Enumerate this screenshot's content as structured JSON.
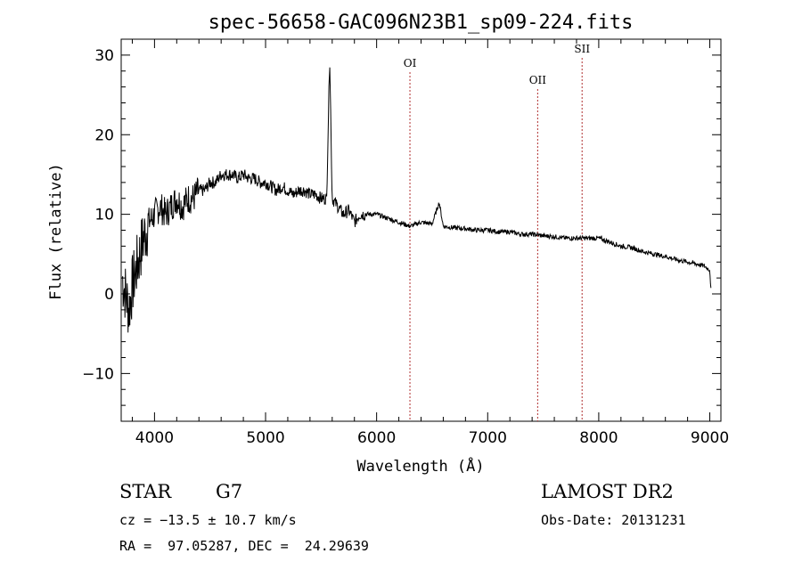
{
  "chart_data": {
    "type": "line",
    "title": "spec-56658-GAC096N23B1_sp09-224.fits",
    "xlabel": "Wavelength (Å)",
    "ylabel": "Flux (relative)",
    "xlim": [
      3700,
      9100
    ],
    "ylim": [
      -16,
      32
    ],
    "xticks": [
      4000,
      5000,
      6000,
      7000,
      8000,
      9000
    ],
    "yticks": [
      -10,
      0,
      10,
      20,
      30
    ],
    "grid": false,
    "line_color": "#000000",
    "spectrum_anchors": {
      "x": [
        3710,
        3740,
        3770,
        3800,
        3850,
        3900,
        3950,
        4000,
        4050,
        4100,
        4150,
        4200,
        4250,
        4300,
        4350,
        4400,
        4450,
        4500,
        4550,
        4600,
        4650,
        4700,
        4750,
        4800,
        4850,
        4900,
        4950,
        5000,
        5050,
        5100,
        5150,
        5200,
        5250,
        5300,
        5350,
        5400,
        5450,
        5500,
        5550,
        5577,
        5600,
        5650,
        5700,
        5750,
        5800,
        5850,
        5900,
        6000,
        6100,
        6200,
        6300,
        6400,
        6500,
        6563,
        6600,
        6700,
        6800,
        6900,
        7000,
        7100,
        7200,
        7300,
        7400,
        7500,
        7600,
        7700,
        7800,
        7900,
        8000,
        8100,
        8200,
        8300,
        8400,
        8500,
        8600,
        8700,
        8800,
        8900,
        8950,
        9000,
        9010
      ],
      "y": [
        2,
        0,
        -2,
        1,
        4,
        7,
        9,
        10,
        11,
        10,
        11,
        12,
        11,
        12,
        12,
        13,
        13,
        14,
        14,
        15,
        15,
        15,
        14.5,
        15,
        14.5,
        14.5,
        14,
        14,
        13.5,
        13,
        13.5,
        13,
        12.5,
        13,
        13,
        12.5,
        12.5,
        12,
        12,
        30,
        12,
        11,
        10,
        10.5,
        9,
        10,
        10,
        10,
        9.5,
        9,
        8.5,
        9,
        8.8,
        11.5,
        8.5,
        8.3,
        8.2,
        8,
        8,
        7.8,
        7.8,
        7.5,
        7.5,
        7.3,
        7.2,
        7,
        7,
        7,
        7,
        6.5,
        6,
        5.8,
        5.3,
        5,
        4.7,
        4.3,
        4,
        3.7,
        3.5,
        3,
        0.5
      ]
    },
    "lines": [
      {
        "label": "OI",
        "x": 6300
      },
      {
        "label": "OII",
        "x": 7450
      },
      {
        "label": "SII",
        "x": 7850
      }
    ],
    "reference_line_color": "#b03030"
  },
  "info": {
    "class_label": "STAR",
    "subclass": "G7",
    "cz_text": "cz = −13.5 ± 10.7 km/s",
    "coord_text": "RA =  97.05287, DEC =  24.29639",
    "survey": "LAMOST DR2",
    "obs_date": "Obs-Date: 20131231"
  }
}
